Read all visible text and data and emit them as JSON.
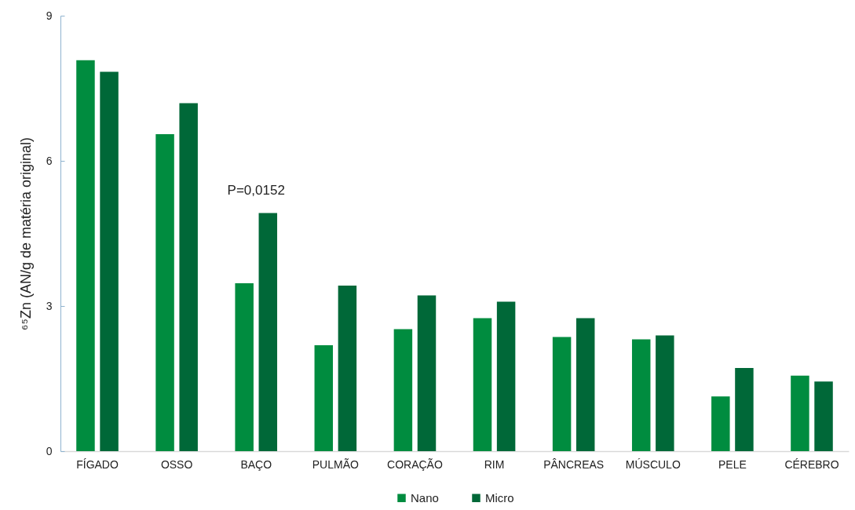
{
  "chart_data": {
    "type": "bar",
    "ylabel": "⁶⁵Zn (AN/g de matéria original)",
    "categories": [
      "FÍGADO",
      "OSSO",
      "BAÇO",
      "PULMÃO",
      "CORAÇÃO",
      "RIM",
      "PÂNCREAS",
      "MÚSCULO",
      "PELE",
      "CÉREBRO"
    ],
    "series": [
      {
        "name": "Nano",
        "color": "#008c3f",
        "values": [
          8.08,
          6.55,
          3.47,
          2.19,
          2.52,
          2.75,
          2.36,
          2.31,
          1.13,
          1.56
        ]
      },
      {
        "name": "Micro",
        "color": "#006838",
        "values": [
          7.84,
          7.19,
          4.92,
          3.42,
          3.22,
          3.09,
          2.75,
          2.39,
          1.72,
          1.44
        ]
      }
    ],
    "ylim": [
      0,
      9
    ],
    "yticks": [
      0,
      3,
      6,
      9
    ],
    "grid": false,
    "legend": "bottom",
    "annotations": [
      {
        "text": "P=0,0152",
        "x": "BAÇO",
        "y": 4.92
      }
    ]
  }
}
